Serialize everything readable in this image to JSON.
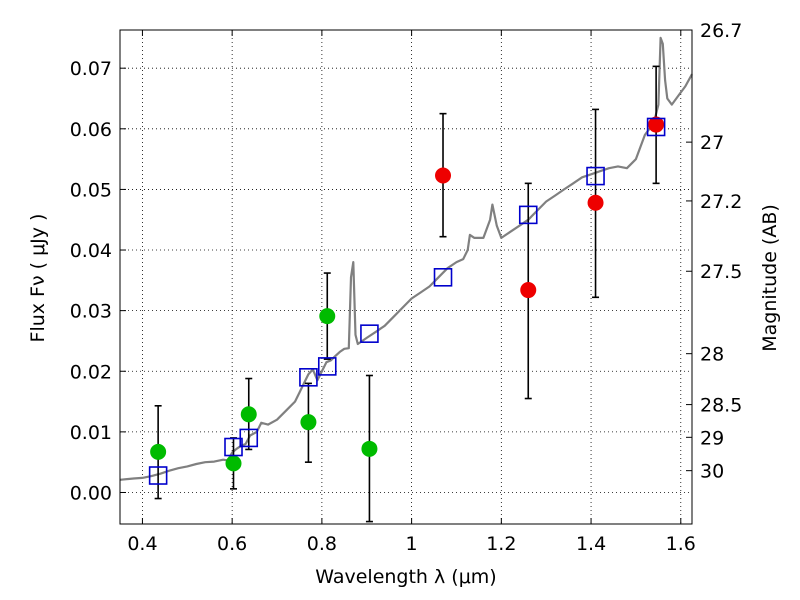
{
  "chart_data": {
    "type": "scatter",
    "xlabel": "Wavelength  λ (μm)",
    "ylabel": "Flux  Fν  ( μJy )",
    "y2label": "Magnitude (AB)",
    "xlim": [
      0.35,
      1.625
    ],
    "ylim": [
      -0.0052,
      0.0763
    ],
    "grid": true,
    "x_ticks": [
      0.4,
      0.6,
      0.8,
      1.0,
      1.2,
      1.4,
      1.6
    ],
    "x_tick_labels": [
      "0.4",
      "0.6",
      "0.8",
      "1",
      "1.2",
      "1.4",
      "1.6"
    ],
    "y_ticks": [
      0.0,
      0.01,
      0.02,
      0.03,
      0.04,
      0.05,
      0.06,
      0.07
    ],
    "y_tick_labels": [
      "0.00",
      "0.01",
      "0.02",
      "0.03",
      "0.04",
      "0.05",
      "0.06",
      "0.07"
    ],
    "magnitude_ticks": [
      {
        "label": "26.7",
        "flux": 0.0763
      },
      {
        "label": "27",
        "flux": 0.0578
      },
      {
        "label": "27.2",
        "flux": 0.0481
      },
      {
        "label": "27.5",
        "flux": 0.0365
      },
      {
        "label": "28",
        "flux": 0.0229
      },
      {
        "label": "28.5",
        "flux": 0.0145
      },
      {
        "label": "29",
        "flux": 0.0091
      },
      {
        "label": "30",
        "flux": 0.0036
      }
    ],
    "model_spectrum": {
      "color": "#808080",
      "points": [
        [
          0.35,
          0.0021
        ],
        [
          0.38,
          0.0023
        ],
        [
          0.4,
          0.0024
        ],
        [
          0.42,
          0.0027
        ],
        [
          0.44,
          0.0031
        ],
        [
          0.46,
          0.0036
        ],
        [
          0.48,
          0.004
        ],
        [
          0.5,
          0.0043
        ],
        [
          0.52,
          0.0047
        ],
        [
          0.54,
          0.005
        ],
        [
          0.56,
          0.0051
        ],
        [
          0.58,
          0.0054
        ],
        [
          0.59,
          0.0053
        ],
        [
          0.6,
          0.0066
        ],
        [
          0.61,
          0.0072
        ],
        [
          0.62,
          0.0077
        ],
        [
          0.63,
          0.008
        ],
        [
          0.64,
          0.0094
        ],
        [
          0.655,
          0.01
        ],
        [
          0.665,
          0.0115
        ],
        [
          0.68,
          0.0112
        ],
        [
          0.7,
          0.012
        ],
        [
          0.72,
          0.0135
        ],
        [
          0.74,
          0.015
        ],
        [
          0.75,
          0.0165
        ],
        [
          0.76,
          0.018
        ],
        [
          0.77,
          0.0195
        ],
        [
          0.78,
          0.0203
        ],
        [
          0.79,
          0.0185
        ],
        [
          0.8,
          0.02
        ],
        [
          0.81,
          0.0215
        ],
        [
          0.82,
          0.0218
        ],
        [
          0.83,
          0.0225
        ],
        [
          0.84,
          0.0232
        ],
        [
          0.85,
          0.0237
        ],
        [
          0.86,
          0.0238
        ],
        [
          0.865,
          0.0355
        ],
        [
          0.87,
          0.038
        ],
        [
          0.875,
          0.026
        ],
        [
          0.88,
          0.0245
        ],
        [
          0.9,
          0.0255
        ],
        [
          0.92,
          0.0265
        ],
        [
          0.94,
          0.0275
        ],
        [
          0.96,
          0.029
        ],
        [
          0.98,
          0.0305
        ],
        [
          1.0,
          0.032
        ],
        [
          1.02,
          0.033
        ],
        [
          1.04,
          0.034
        ],
        [
          1.06,
          0.0355
        ],
        [
          1.08,
          0.037
        ],
        [
          1.1,
          0.038
        ],
        [
          1.115,
          0.0385
        ],
        [
          1.125,
          0.04
        ],
        [
          1.13,
          0.0425
        ],
        [
          1.14,
          0.042
        ],
        [
          1.16,
          0.042
        ],
        [
          1.175,
          0.045
        ],
        [
          1.18,
          0.0475
        ],
        [
          1.19,
          0.044
        ],
        [
          1.2,
          0.042
        ],
        [
          1.22,
          0.043
        ],
        [
          1.24,
          0.044
        ],
        [
          1.26,
          0.045
        ],
        [
          1.28,
          0.0465
        ],
        [
          1.3,
          0.048
        ],
        [
          1.32,
          0.049
        ],
        [
          1.34,
          0.05
        ],
        [
          1.36,
          0.051
        ],
        [
          1.38,
          0.052
        ],
        [
          1.4,
          0.0525
        ],
        [
          1.42,
          0.053
        ],
        [
          1.44,
          0.0535
        ],
        [
          1.46,
          0.0538
        ],
        [
          1.48,
          0.0535
        ],
        [
          1.5,
          0.055
        ],
        [
          1.51,
          0.057
        ],
        [
          1.52,
          0.059
        ],
        [
          1.53,
          0.06
        ],
        [
          1.54,
          0.061
        ],
        [
          1.55,
          0.064
        ],
        [
          1.555,
          0.075
        ],
        [
          1.56,
          0.074
        ],
        [
          1.565,
          0.068
        ],
        [
          1.57,
          0.065
        ],
        [
          1.58,
          0.064
        ],
        [
          1.59,
          0.065
        ],
        [
          1.6,
          0.066
        ],
        [
          1.61,
          0.067
        ],
        [
          1.625,
          0.069
        ]
      ]
    },
    "model_photometry": {
      "marker": "square",
      "color": "#0000cc",
      "points": [
        {
          "x": 0.435,
          "y": 0.0028
        },
        {
          "x": 0.603,
          "y": 0.0075
        },
        {
          "x": 0.637,
          "y": 0.009
        },
        {
          "x": 0.77,
          "y": 0.019
        },
        {
          "x": 0.812,
          "y": 0.0208
        },
        {
          "x": 0.906,
          "y": 0.0262
        },
        {
          "x": 1.07,
          "y": 0.0355
        },
        {
          "x": 1.26,
          "y": 0.0458
        },
        {
          "x": 1.41,
          "y": 0.0522
        },
        {
          "x": 1.545,
          "y": 0.0603
        }
      ]
    },
    "observed": {
      "marker": "circle",
      "errorbar_color": "#000000",
      "points": [
        {
          "x": 0.435,
          "y": 0.0067,
          "err_lo": -0.001,
          "err_hi": 0.0143,
          "color": "#00bb00"
        },
        {
          "x": 0.603,
          "y": 0.0048,
          "err_lo": 0.0006,
          "err_hi": 0.009,
          "color": "#00bb00"
        },
        {
          "x": 0.637,
          "y": 0.0129,
          "err_lo": 0.0071,
          "err_hi": 0.0188,
          "color": "#00bb00"
        },
        {
          "x": 0.77,
          "y": 0.0116,
          "err_lo": 0.005,
          "err_hi": 0.018,
          "color": "#00bb00"
        },
        {
          "x": 0.812,
          "y": 0.0291,
          "err_lo": 0.022,
          "err_hi": 0.0362,
          "color": "#00bb00"
        },
        {
          "x": 0.906,
          "y": 0.0072,
          "err_lo": -0.0048,
          "err_hi": 0.0193,
          "color": "#00bb00"
        },
        {
          "x": 1.07,
          "y": 0.0523,
          "err_lo": 0.0422,
          "err_hi": 0.0625,
          "color": "#ee0000"
        },
        {
          "x": 1.26,
          "y": 0.0334,
          "err_lo": 0.0155,
          "err_hi": 0.051,
          "color": "#ee0000"
        },
        {
          "x": 1.41,
          "y": 0.0478,
          "err_lo": 0.0322,
          "err_hi": 0.0632,
          "color": "#ee0000"
        },
        {
          "x": 1.545,
          "y": 0.0607,
          "err_lo": 0.051,
          "err_hi": 0.0703,
          "color": "#ee0000"
        }
      ]
    }
  }
}
